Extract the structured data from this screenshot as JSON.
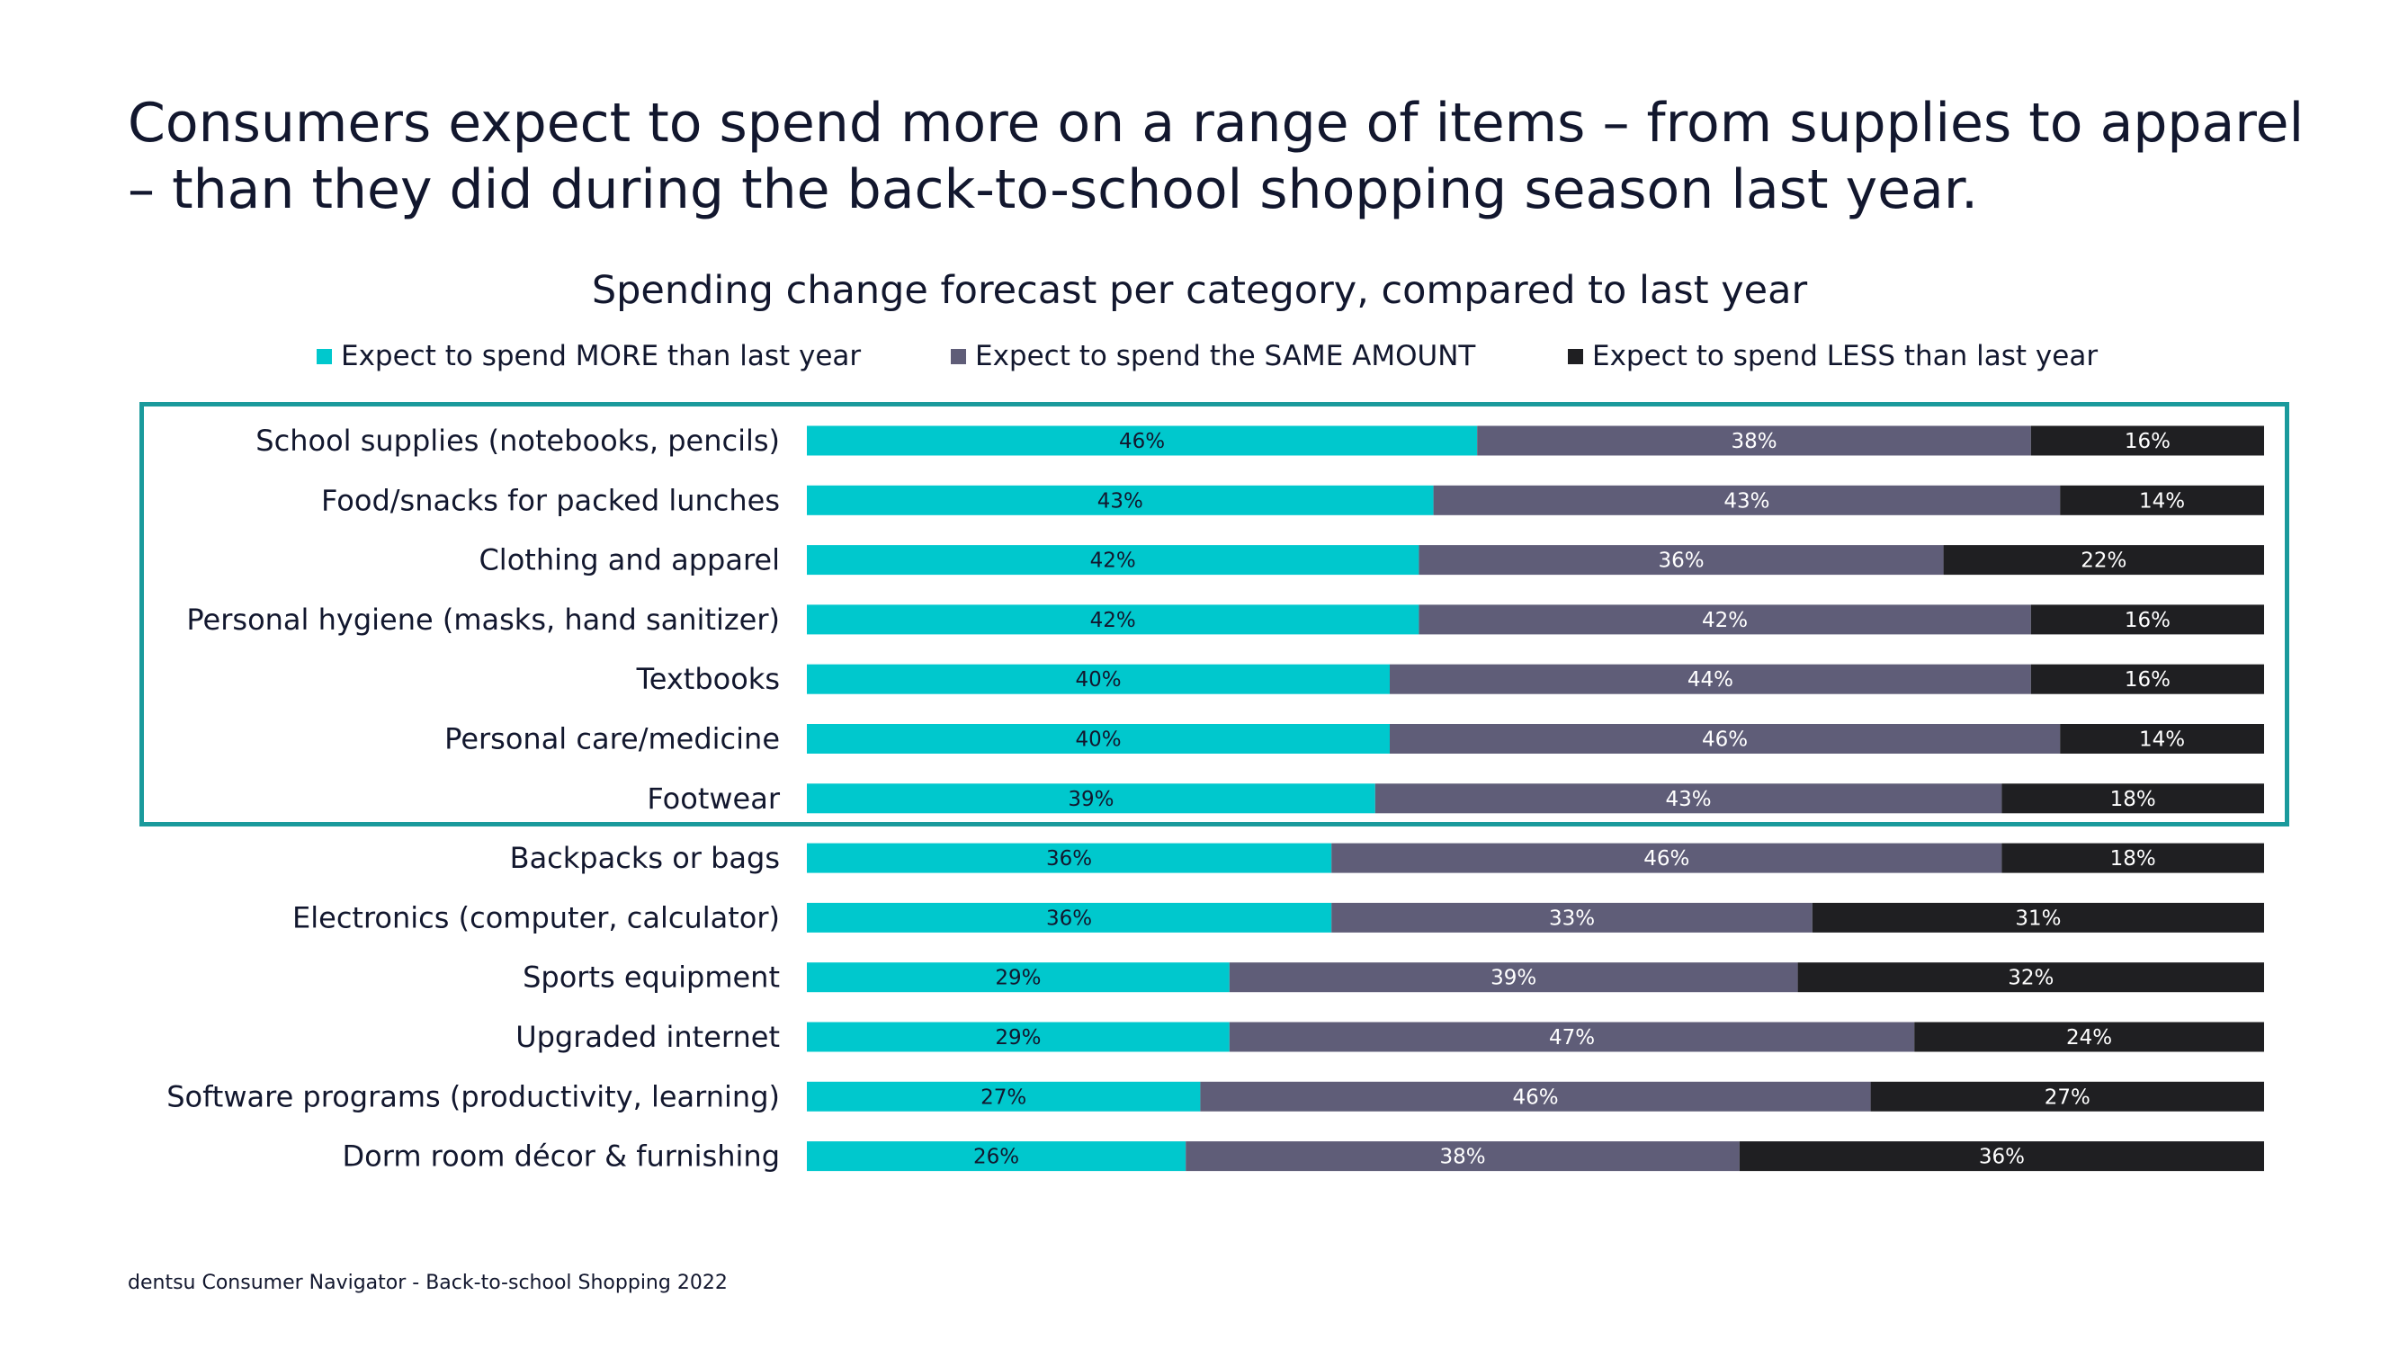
{
  "headline": "Consumers expect to spend more on a range of items – from supplies to apparel – than they did during the back-to-school shopping season last year.",
  "footer": "dentsu Consumer Navigator - Back-to-school Shopping 2022",
  "colors": {
    "more": "#00c8cd",
    "same": "#5f5d78",
    "less": "#1f1f22",
    "highlight": "#1a9a9c"
  },
  "chart_data": {
    "type": "bar",
    "orientation": "horizontal",
    "stacked": true,
    "title": "Spending change forecast per category, compared to last year",
    "xlabel": "",
    "ylabel": "",
    "xlim": [
      0,
      100
    ],
    "legend_position": "top",
    "categories": [
      "School supplies (notebooks, pencils)",
      "Food/snacks for packed lunches",
      "Clothing and apparel",
      "Personal hygiene (masks, hand sanitizer)",
      "Textbooks",
      "Personal care/medicine",
      "Footwear",
      "Backpacks or bags",
      "Electronics (computer, calculator)",
      "Sports equipment",
      "Upgraded internet",
      "Software programs (productivity, learning)",
      "Dorm room décor & furnishing"
    ],
    "series": [
      {
        "name": "Expect to spend MORE than last year",
        "color": "#00c8cd",
        "values": [
          46,
          43,
          42,
          42,
          40,
          40,
          39,
          36,
          36,
          29,
          29,
          27,
          26
        ]
      },
      {
        "name": "Expect to spend the SAME AMOUNT",
        "color": "#5f5d78",
        "values": [
          38,
          43,
          36,
          42,
          44,
          46,
          43,
          46,
          33,
          39,
          47,
          46,
          38
        ]
      },
      {
        "name": "Expect to spend LESS than last year",
        "color": "#1f1f22",
        "values": [
          16,
          14,
          22,
          16,
          16,
          14,
          18,
          18,
          31,
          32,
          24,
          27,
          36
        ]
      }
    ],
    "highlighted_categories": 7
  }
}
